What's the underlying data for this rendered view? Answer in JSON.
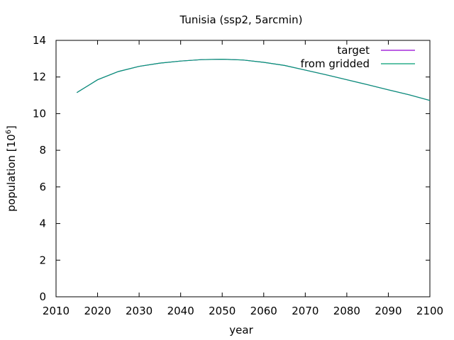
{
  "chart_data": {
    "type": "line",
    "title": "Tunisia (ssp2, 5arcmin)",
    "xlabel": "year",
    "ylabel_base": "population [10",
    "ylabel_exp": "6",
    "ylabel_close": "]",
    "xlim": [
      2010,
      2100
    ],
    "ylim": [
      0,
      14
    ],
    "xticks": [
      2010,
      2020,
      2030,
      2040,
      2050,
      2060,
      2070,
      2080,
      2090,
      2100
    ],
    "yticks": [
      0,
      2,
      4,
      6,
      8,
      10,
      12,
      14
    ],
    "grid": false,
    "legend_position": "top-right",
    "series": [
      {
        "name": "target",
        "color": "#9400d3",
        "x": [
          2015,
          2020,
          2025,
          2030,
          2035,
          2040,
          2045,
          2050,
          2055,
          2060,
          2065,
          2070,
          2075,
          2080,
          2085,
          2090,
          2095,
          2100
        ],
        "values": [
          11.15,
          11.85,
          12.3,
          12.58,
          12.76,
          12.87,
          12.95,
          12.97,
          12.93,
          12.8,
          12.63,
          12.38,
          12.12,
          11.85,
          11.58,
          11.3,
          11.03,
          10.72
        ]
      },
      {
        "name": "from gridded",
        "color": "#009e73",
        "x": [
          2015,
          2020,
          2025,
          2030,
          2035,
          2040,
          2045,
          2050,
          2055,
          2060,
          2065,
          2070,
          2075,
          2080,
          2085,
          2090,
          2095,
          2100
        ],
        "values": [
          11.15,
          11.85,
          12.3,
          12.58,
          12.76,
          12.87,
          12.95,
          12.97,
          12.93,
          12.8,
          12.63,
          12.38,
          12.12,
          11.85,
          11.58,
          11.3,
          11.03,
          10.72
        ]
      }
    ]
  }
}
